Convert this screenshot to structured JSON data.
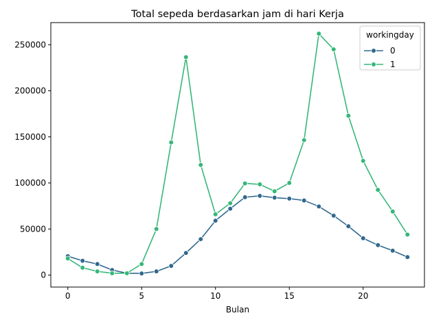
{
  "chart_data": {
    "type": "line",
    "title": "Total sepeda berdasarkan jam di hari Kerja",
    "xlabel": "Bulan",
    "ylabel": "",
    "xlim": [
      -1.15,
      24.15
    ],
    "ylim": [
      -13000,
      274000
    ],
    "xticks": [
      0,
      5,
      10,
      15,
      20
    ],
    "yticks": [
      0,
      50000,
      100000,
      150000,
      200000,
      250000
    ],
    "grid": false,
    "legend": {
      "title": "workingday",
      "placement": "top-right"
    },
    "x": [
      0,
      1,
      2,
      3,
      4,
      5,
      6,
      7,
      8,
      9,
      10,
      11,
      12,
      13,
      14,
      15,
      16,
      17,
      18,
      19,
      20,
      21,
      22,
      23
    ],
    "series": [
      {
        "name": "0",
        "color": "#31688e",
        "values": [
          20500,
          15500,
          12000,
          5500,
          2000,
          1800,
          4000,
          10000,
          24000,
          39000,
          59000,
          72000,
          84500,
          86000,
          84000,
          83000,
          81000,
          74500,
          64500,
          53000,
          40000,
          32500,
          26500,
          19500
        ]
      },
      {
        "name": "1",
        "color": "#35b779",
        "values": [
          18000,
          8000,
          4000,
          2000,
          2000,
          12000,
          50000,
          144000,
          236500,
          119500,
          66000,
          78000,
          99500,
          98500,
          91000,
          100000,
          146500,
          262000,
          245000,
          173000,
          124000,
          92500,
          69000,
          44000
        ]
      }
    ]
  }
}
